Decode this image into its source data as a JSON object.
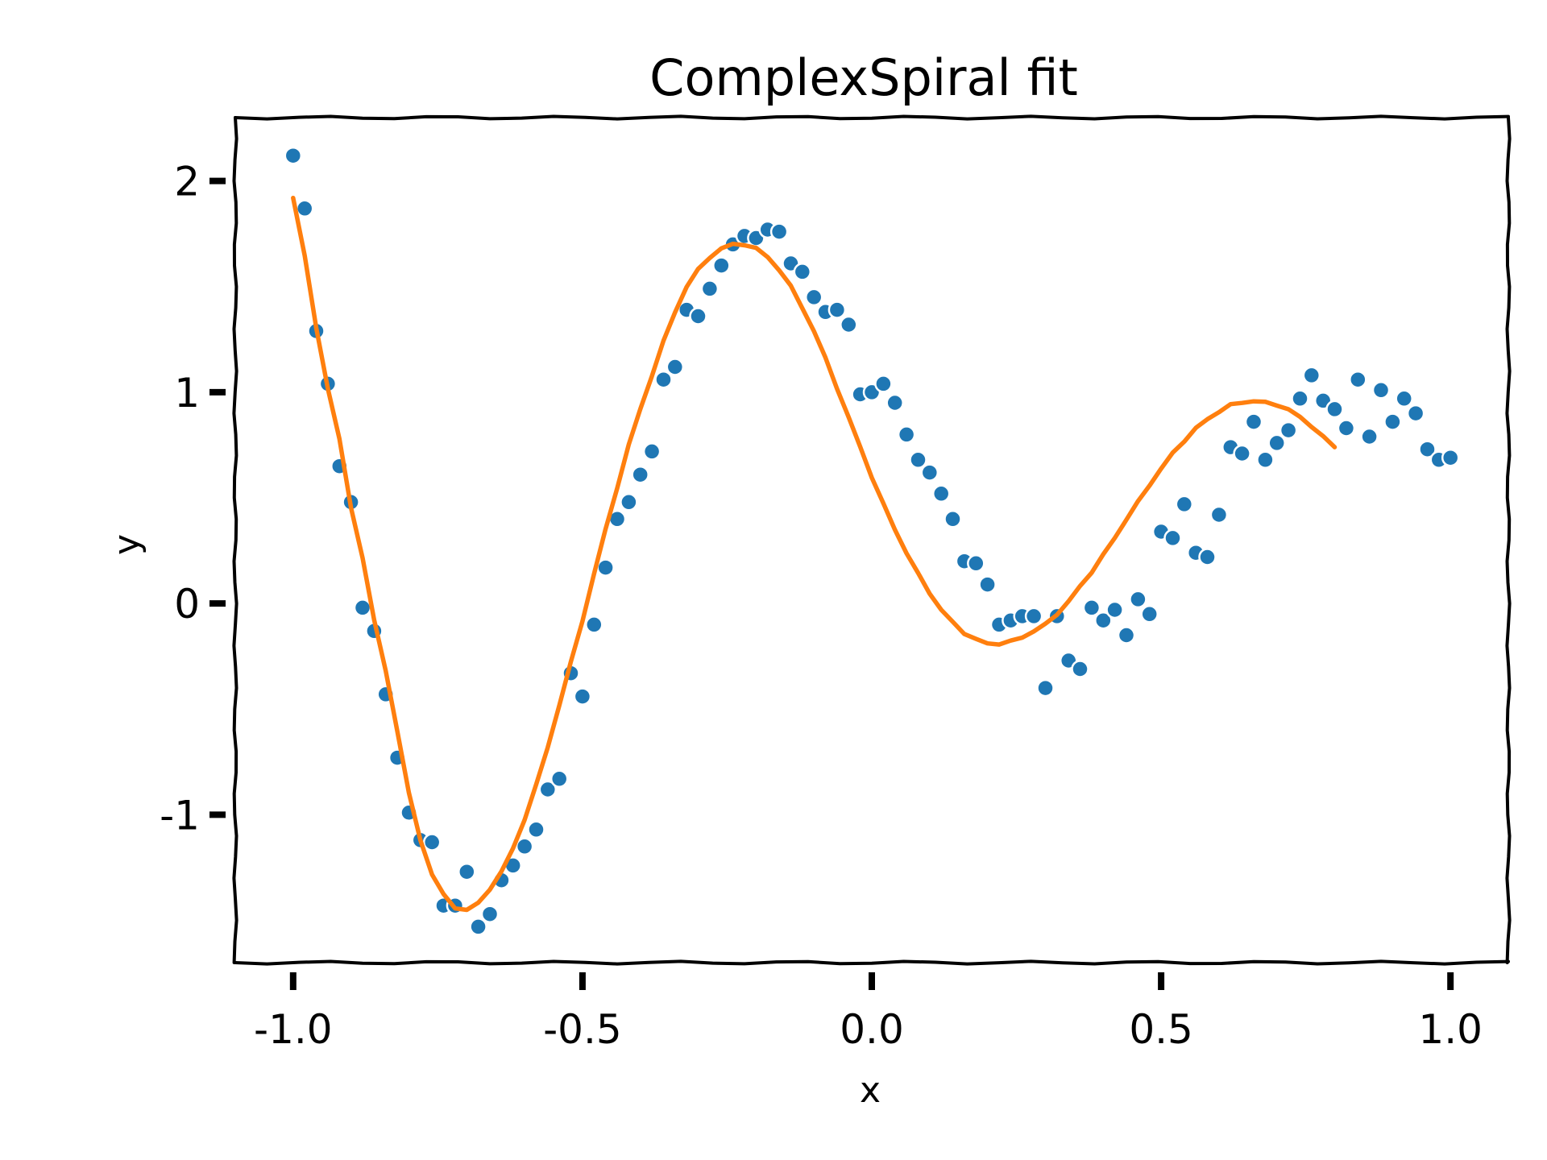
{
  "chart_data": {
    "type": "scatter",
    "title": "ComplexSpiral fit",
    "xlabel": "x",
    "ylabel": "y",
    "xlim": [
      -1.1,
      1.1
    ],
    "ylim": [
      -1.7,
      2.3
    ],
    "xticks": [
      -1.0,
      -0.5,
      0.0,
      0.5,
      1.0
    ],
    "xtick_labels": [
      "-1.0",
      "-0.5",
      "0.0",
      "0.5",
      "1.0"
    ],
    "yticks": [
      -1,
      0,
      1,
      2
    ],
    "ytick_labels": [
      "-1",
      "0",
      "1",
      "2"
    ],
    "grid": false,
    "legend": "none",
    "colors": {
      "points": "#1f77b4",
      "fit": "#ff7f0e",
      "axes": "#000000"
    },
    "series": [
      {
        "kind": "scatter",
        "points": [
          [
            -1.0,
            2.12
          ],
          [
            -0.98,
            1.87
          ],
          [
            -0.96,
            1.29
          ],
          [
            -0.94,
            1.04
          ],
          [
            -0.92,
            0.65
          ],
          [
            -0.9,
            0.48
          ],
          [
            -0.88,
            -0.02
          ],
          [
            -0.86,
            -0.13
          ],
          [
            -0.84,
            -0.43
          ],
          [
            -0.82,
            -0.73
          ],
          [
            -0.8,
            -0.99
          ],
          [
            -0.78,
            -1.12
          ],
          [
            -0.76,
            -1.13
          ],
          [
            -0.74,
            -1.43
          ],
          [
            -0.72,
            -1.43
          ],
          [
            -0.7,
            -1.27
          ],
          [
            -0.68,
            -1.53
          ],
          [
            -0.66,
            -1.47
          ],
          [
            -0.64,
            -1.31
          ],
          [
            -0.62,
            -1.24
          ],
          [
            -0.6,
            -1.15
          ],
          [
            -0.58,
            -1.07
          ],
          [
            -0.56,
            -0.88
          ],
          [
            -0.54,
            -0.83
          ],
          [
            -0.52,
            -0.33
          ],
          [
            -0.5,
            -0.44
          ],
          [
            -0.48,
            -0.1
          ],
          [
            -0.46,
            0.17
          ],
          [
            -0.44,
            0.4
          ],
          [
            -0.42,
            0.48
          ],
          [
            -0.4,
            0.61
          ],
          [
            -0.38,
            0.72
          ],
          [
            -0.36,
            1.06
          ],
          [
            -0.34,
            1.12
          ],
          [
            -0.32,
            1.39
          ],
          [
            -0.3,
            1.36
          ],
          [
            -0.28,
            1.49
          ],
          [
            -0.26,
            1.6
          ],
          [
            -0.24,
            1.7
          ],
          [
            -0.22,
            1.74
          ],
          [
            -0.2,
            1.73
          ],
          [
            -0.18,
            1.77
          ],
          [
            -0.16,
            1.76
          ],
          [
            -0.14,
            1.61
          ],
          [
            -0.12,
            1.57
          ],
          [
            -0.1,
            1.45
          ],
          [
            -0.08,
            1.38
          ],
          [
            -0.06,
            1.39
          ],
          [
            -0.04,
            1.32
          ],
          [
            -0.02,
            0.99
          ],
          [
            0.0,
            1.0
          ],
          [
            0.02,
            1.04
          ],
          [
            0.04,
            0.95
          ],
          [
            0.06,
            0.8
          ],
          [
            0.08,
            0.68
          ],
          [
            0.1,
            0.62
          ],
          [
            0.12,
            0.52
          ],
          [
            0.14,
            0.4
          ],
          [
            0.16,
            0.2
          ],
          [
            0.18,
            0.19
          ],
          [
            0.2,
            0.09
          ],
          [
            0.22,
            -0.1
          ],
          [
            0.24,
            -0.08
          ],
          [
            0.26,
            -0.06
          ],
          [
            0.28,
            -0.06
          ],
          [
            0.3,
            -0.4
          ],
          [
            0.32,
            -0.06
          ],
          [
            0.34,
            -0.27
          ],
          [
            0.36,
            -0.31
          ],
          [
            0.38,
            -0.02
          ],
          [
            0.4,
            -0.08
          ],
          [
            0.42,
            -0.03
          ],
          [
            0.44,
            -0.15
          ],
          [
            0.46,
            0.02
          ],
          [
            0.48,
            -0.05
          ],
          [
            0.5,
            0.34
          ],
          [
            0.52,
            0.31
          ],
          [
            0.54,
            0.47
          ],
          [
            0.56,
            0.24
          ],
          [
            0.58,
            0.22
          ],
          [
            0.6,
            0.42
          ],
          [
            0.62,
            0.74
          ],
          [
            0.64,
            0.71
          ],
          [
            0.66,
            0.86
          ],
          [
            0.68,
            0.68
          ],
          [
            0.7,
            0.76
          ],
          [
            0.72,
            0.82
          ],
          [
            0.74,
            0.97
          ],
          [
            0.76,
            1.08
          ],
          [
            0.78,
            0.96
          ],
          [
            0.8,
            0.92
          ],
          [
            0.82,
            0.83
          ],
          [
            0.84,
            1.06
          ],
          [
            0.86,
            0.79
          ],
          [
            0.88,
            1.01
          ],
          [
            0.9,
            0.86
          ],
          [
            0.92,
            0.97
          ],
          [
            0.94,
            0.9
          ],
          [
            0.96,
            0.73
          ],
          [
            0.98,
            0.68
          ],
          [
            1.0,
            0.69
          ]
        ]
      },
      {
        "kind": "line",
        "points": [
          [
            -1.0,
            1.92
          ],
          [
            -0.98,
            1.65
          ],
          [
            -0.96,
            1.3
          ],
          [
            -0.94,
            1.02
          ],
          [
            -0.92,
            0.78
          ],
          [
            -0.9,
            0.45
          ],
          [
            -0.88,
            0.22
          ],
          [
            -0.86,
            -0.08
          ],
          [
            -0.84,
            -0.32
          ],
          [
            -0.82,
            -0.6
          ],
          [
            -0.8,
            -0.9
          ],
          [
            -0.78,
            -1.12
          ],
          [
            -0.76,
            -1.28
          ],
          [
            -0.74,
            -1.38
          ],
          [
            -0.72,
            -1.44
          ],
          [
            -0.7,
            -1.45
          ],
          [
            -0.68,
            -1.42
          ],
          [
            -0.66,
            -1.35
          ],
          [
            -0.64,
            -1.27
          ],
          [
            -0.62,
            -1.16
          ],
          [
            -0.6,
            -1.02
          ],
          [
            -0.58,
            -0.86
          ],
          [
            -0.56,
            -0.68
          ],
          [
            -0.54,
            -0.48
          ],
          [
            -0.52,
            -0.28
          ],
          [
            -0.5,
            -0.08
          ],
          [
            -0.48,
            0.14
          ],
          [
            -0.46,
            0.35
          ],
          [
            -0.44,
            0.55
          ],
          [
            -0.42,
            0.75
          ],
          [
            -0.4,
            0.92
          ],
          [
            -0.38,
            1.08
          ],
          [
            -0.36,
            1.24
          ],
          [
            -0.34,
            1.38
          ],
          [
            -0.32,
            1.5
          ],
          [
            -0.3,
            1.58
          ],
          [
            -0.28,
            1.64
          ],
          [
            -0.26,
            1.68
          ],
          [
            -0.24,
            1.7
          ],
          [
            -0.22,
            1.7
          ],
          [
            -0.2,
            1.68
          ],
          [
            -0.18,
            1.64
          ],
          [
            -0.16,
            1.58
          ],
          [
            -0.14,
            1.5
          ],
          [
            -0.12,
            1.4
          ],
          [
            -0.1,
            1.29
          ],
          [
            -0.08,
            1.16
          ],
          [
            -0.06,
            1.02
          ],
          [
            -0.04,
            0.88
          ],
          [
            -0.02,
            0.74
          ],
          [
            0.0,
            0.6
          ],
          [
            0.02,
            0.47
          ],
          [
            0.04,
            0.35
          ],
          [
            0.06,
            0.24
          ],
          [
            0.08,
            0.14
          ],
          [
            0.1,
            0.05
          ],
          [
            0.12,
            -0.03
          ],
          [
            0.14,
            -0.09
          ],
          [
            0.16,
            -0.14
          ],
          [
            0.18,
            -0.17
          ],
          [
            0.2,
            -0.19
          ],
          [
            0.22,
            -0.19
          ],
          [
            0.24,
            -0.18
          ],
          [
            0.26,
            -0.16
          ],
          [
            0.28,
            -0.13
          ],
          [
            0.3,
            -0.1
          ],
          [
            0.32,
            -0.05
          ],
          [
            0.34,
            0.01
          ],
          [
            0.36,
            0.08
          ],
          [
            0.38,
            0.15
          ],
          [
            0.4,
            0.23
          ],
          [
            0.42,
            0.31
          ],
          [
            0.44,
            0.4
          ],
          [
            0.46,
            0.48
          ],
          [
            0.48,
            0.56
          ],
          [
            0.5,
            0.64
          ],
          [
            0.52,
            0.71
          ],
          [
            0.54,
            0.77
          ],
          [
            0.56,
            0.83
          ],
          [
            0.58,
            0.87
          ],
          [
            0.6,
            0.91
          ],
          [
            0.62,
            0.94
          ],
          [
            0.64,
            0.95
          ],
          [
            0.66,
            0.96
          ],
          [
            0.68,
            0.95
          ],
          [
            0.7,
            0.94
          ],
          [
            0.72,
            0.92
          ],
          [
            0.74,
            0.88
          ],
          [
            0.76,
            0.84
          ],
          [
            0.78,
            0.79
          ],
          [
            0.8,
            0.74
          ]
        ]
      }
    ]
  }
}
